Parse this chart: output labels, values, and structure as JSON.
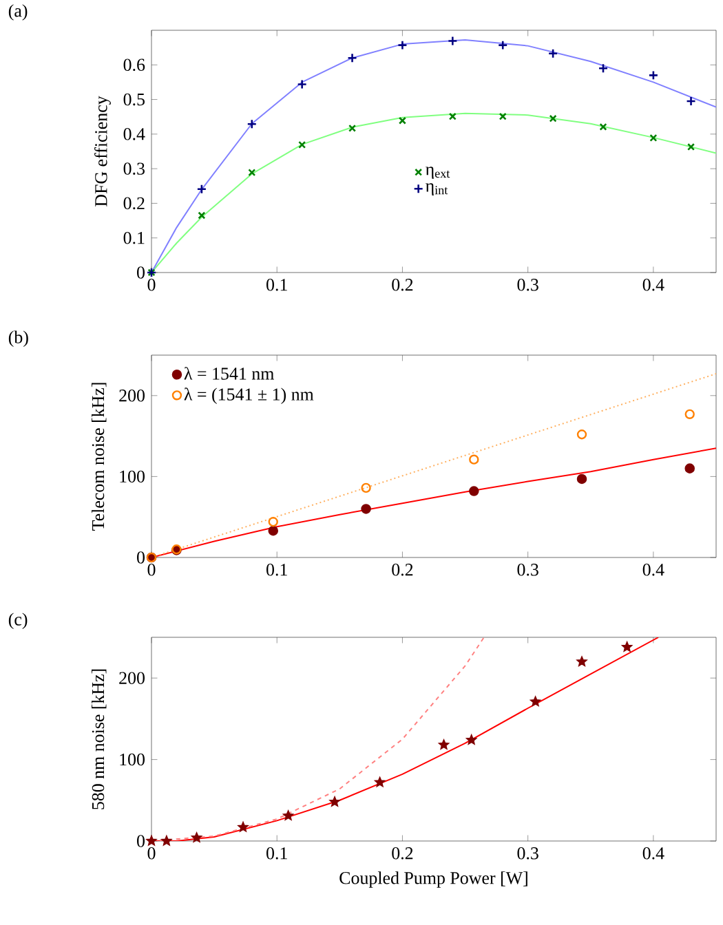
{
  "chart_data": [
    {
      "type": "scatter",
      "title": "(a)",
      "ylabel": "DFG efficiency",
      "xlim": [
        0,
        0.45
      ],
      "ylim": [
        0,
        0.7
      ],
      "xticks": [
        0,
        0.1,
        0.2,
        0.3,
        0.4
      ],
      "yticks": [
        0,
        0.1,
        0.2,
        0.3,
        0.4,
        0.5,
        0.6
      ],
      "legend": "center",
      "series": [
        {
          "type": "line",
          "color": "#80ff80",
          "marker": "none",
          "x": [
            0,
            0.02,
            0.04,
            0.08,
            0.12,
            0.16,
            0.2,
            0.25,
            0.3,
            0.35,
            0.4,
            0.45
          ],
          "values": [
            0,
            0.085,
            0.16,
            0.285,
            0.37,
            0.42,
            0.448,
            0.46,
            0.455,
            0.43,
            0.39,
            0.345
          ]
        },
        {
          "type": "line",
          "color": "#8080ff",
          "marker": "none",
          "x": [
            0,
            0.02,
            0.04,
            0.08,
            0.12,
            0.16,
            0.2,
            0.25,
            0.3,
            0.35,
            0.4,
            0.45
          ],
          "values": [
            0,
            0.13,
            0.24,
            0.43,
            0.55,
            0.62,
            0.66,
            0.672,
            0.655,
            0.61,
            0.55,
            0.478
          ]
        },
        {
          "name": "η$_{ext}$",
          "color": "#008000",
          "marker": "cross",
          "x": [
            0,
            0.04,
            0.08,
            0.12,
            0.16,
            0.2,
            0.24,
            0.28,
            0.32,
            0.36,
            0.4,
            0.43
          ],
          "values": [
            0,
            0.165,
            0.289,
            0.369,
            0.417,
            0.439,
            0.451,
            0.451,
            0.445,
            0.421,
            0.389,
            0.363
          ]
        },
        {
          "name": "η$_{int}$",
          "color": "#000080",
          "marker": "plus",
          "x": [
            0,
            0.04,
            0.08,
            0.12,
            0.16,
            0.2,
            0.24,
            0.28,
            0.32,
            0.36,
            0.4,
            0.43
          ],
          "values": [
            0,
            0.241,
            0.429,
            0.544,
            0.62,
            0.657,
            0.669,
            0.657,
            0.633,
            0.59,
            0.57,
            0.495
          ]
        }
      ]
    },
    {
      "type": "scatter",
      "title": "(b)",
      "ylabel": "Telecom noise [kHz]",
      "xlim": [
        0,
        0.45
      ],
      "ylim": [
        0,
        250
      ],
      "xticks": [
        0,
        0.1,
        0.2,
        0.3,
        0.4
      ],
      "yticks": [
        0,
        100,
        200
      ],
      "legend": "top left",
      "series": [
        {
          "type": "line",
          "color": "#ff0000",
          "marker": "none",
          "line_style": "solid",
          "x": [
            0,
            0.05,
            0.1,
            0.15,
            0.2,
            0.25,
            0.3,
            0.35,
            0.4,
            0.45
          ],
          "values": [
            0,
            20,
            38,
            53,
            67,
            81,
            94,
            106,
            121,
            135
          ]
        },
        {
          "type": "line",
          "color": "#ffb060",
          "marker": "none",
          "line_style": "dotted",
          "x": [
            0,
            0.45
          ],
          "values": [
            0,
            227
          ]
        },
        {
          "name": "λ = 1541 nm",
          "color": "#800000",
          "marker": "circle",
          "x": [
            0,
            0.02,
            0.097,
            0.171,
            0.257,
            0.343,
            0.429
          ],
          "values": [
            0,
            9,
            33,
            60,
            82,
            97,
            110
          ]
        },
        {
          "name": "λ = (1541 ± 1) nm",
          "color": "#ff8000",
          "marker": "open circle",
          "x": [
            0,
            0.02,
            0.097,
            0.171,
            0.257,
            0.343,
            0.429
          ],
          "values": [
            0,
            10,
            44,
            86,
            121,
            152,
            177
          ]
        }
      ]
    },
    {
      "type": "scatter",
      "title": "(c)",
      "xlabel": "Coupled Pump Power [W]",
      "ylabel": "580 nm noise [kHz]",
      "xlim": [
        0,
        0.45
      ],
      "ylim": [
        0,
        250
      ],
      "xticks": [
        0,
        0.1,
        0.2,
        0.3,
        0.4
      ],
      "yticks": [
        0,
        100,
        200
      ],
      "series": [
        {
          "type": "line",
          "color": "#ff0000",
          "marker": "none",
          "line_style": "solid",
          "x": [
            0,
            0.02,
            0.05,
            0.1,
            0.15,
            0.2,
            0.25,
            0.3,
            0.35,
            0.404
          ],
          "values": [
            0,
            0,
            5,
            25,
            50,
            82,
            120,
            163,
            205,
            250
          ]
        },
        {
          "type": "line",
          "color": "#ff8080",
          "marker": "none",
          "line_style": "dashed",
          "x": [
            0,
            0.05,
            0.1,
            0.15,
            0.2,
            0.25,
            0.265
          ],
          "values": [
            0,
            6,
            27,
            64,
            125,
            215,
            250
          ]
        },
        {
          "color": "#800000",
          "marker": "star",
          "x": [
            0,
            0.012,
            0.036,
            0.073,
            0.109,
            0.146,
            0.182,
            0.233,
            0.255,
            0.306,
            0.343,
            0.379
          ],
          "values": [
            0,
            0,
            4,
            17,
            31,
            48,
            72,
            118,
            124,
            171,
            220,
            238
          ]
        }
      ]
    }
  ]
}
